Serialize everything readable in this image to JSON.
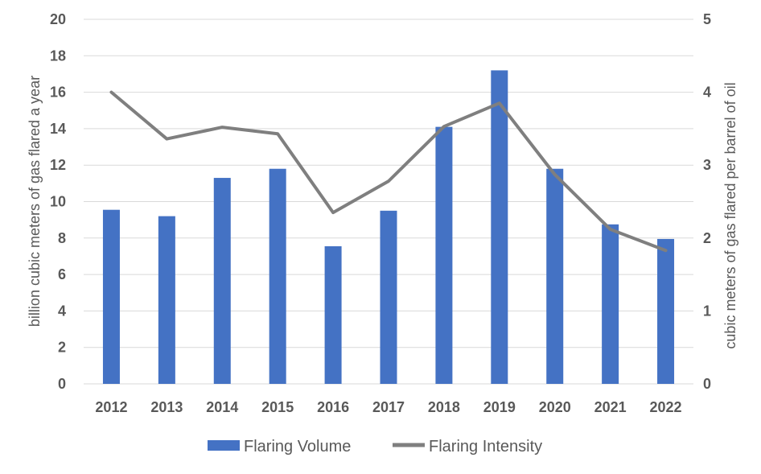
{
  "chart_data": {
    "type": "bar",
    "categories": [
      "2012",
      "2013",
      "2014",
      "2015",
      "2016",
      "2017",
      "2018",
      "2019",
      "2020",
      "2021",
      "2022"
    ],
    "series": [
      {
        "name": "Flaring Volume",
        "type": "bar",
        "axis": "left",
        "color": "#4472C4",
        "values": [
          9.55,
          9.2,
          11.3,
          11.8,
          7.55,
          9.5,
          14.1,
          17.2,
          11.8,
          8.75,
          7.95
        ]
      },
      {
        "name": "Flaring Intensity",
        "type": "line",
        "axis": "right",
        "color": "#7F7F7F",
        "values": [
          4.0,
          3.36,
          3.52,
          3.43,
          2.35,
          2.78,
          3.53,
          3.85,
          2.87,
          2.12,
          1.83
        ]
      }
    ],
    "ylabel": "billion cubic meters of gas flared a year",
    "y2label": "cubic meters of gas flared per barrel of oil",
    "ylim": [
      0,
      20
    ],
    "y2lim": [
      0,
      5
    ],
    "yticks": [
      "0",
      "2",
      "4",
      "6",
      "8",
      "10",
      "12",
      "14",
      "16",
      "18",
      "20"
    ],
    "y2ticks": [
      "0",
      "1",
      "2",
      "3",
      "4",
      "5"
    ],
    "grid": true,
    "legend_position": "bottom"
  }
}
